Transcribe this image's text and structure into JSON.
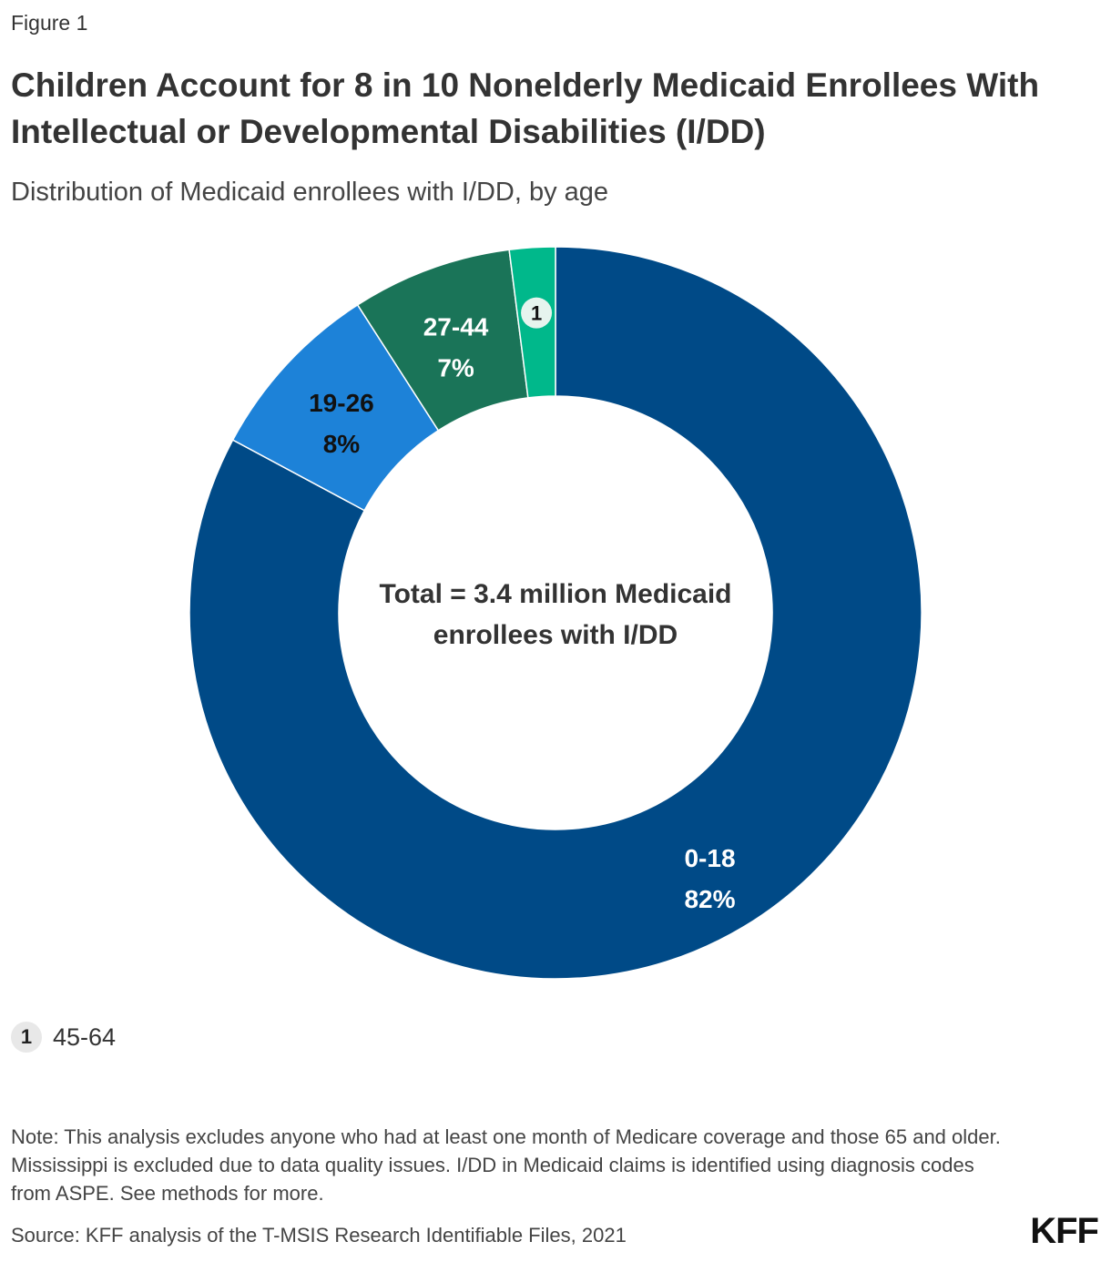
{
  "figure_label": "Figure 1",
  "title": "Children Account for 8 in 10 Nonelderly Medicaid Enrollees With Intellectual or Developmental Disabilities (I/DD)",
  "subtitle": "Distribution of Medicaid enrollees with I/DD, by age",
  "center_label": [
    "Total = 3.4 million Medicaid",
    "enrollees with I/DD"
  ],
  "legend": [
    {
      "marker": "1",
      "label": "45-64"
    }
  ],
  "note": "Note: This analysis excludes anyone who had at least one month of Medicare coverage and those 65 and older. Mississippi is excluded due to data quality issues. I/DD in Medicaid claims is identified using diagnosis codes from ASPE. See methods for more.",
  "source": "Source: KFF analysis of the T-MSIS Research Identifiable Files, 2021",
  "logo": "KFF",
  "chart_data": {
    "type": "pie",
    "donut": true,
    "categories": [
      "0-18",
      "19-26",
      "27-44",
      "45-64"
    ],
    "values": [
      82,
      8,
      7,
      2
    ],
    "labels": [
      "82%",
      "8%",
      "7%",
      ""
    ],
    "marker": [
      null,
      null,
      null,
      "1"
    ],
    "colors": [
      "#004a87",
      "#1d82d8",
      "#1a7458",
      "#00b88b"
    ],
    "label_colors": [
      "#ffffff",
      "#111111",
      "#ffffff",
      "#111111"
    ]
  }
}
